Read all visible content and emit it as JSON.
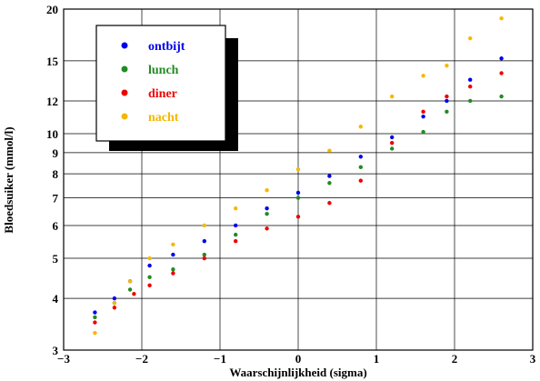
{
  "chart_data": {
    "type": "scatter",
    "title": "",
    "xlabel": "Waarschijnlijkheid (sigma)",
    "ylabel": "Bloedsuiker (mmol/l)",
    "xlim": [
      -3.0,
      3.0
    ],
    "ylim": [
      3.0,
      20.0
    ],
    "y_scale": "log",
    "grid": true,
    "legend_position": "top-left",
    "xticks": [
      -3,
      -2,
      -1,
      0,
      1,
      2,
      3
    ],
    "xtick_labels": [
      "−3",
      "−2",
      "−1",
      "0",
      "1",
      "2",
      "3"
    ],
    "yticks": [
      3,
      4,
      5,
      6,
      7,
      8,
      9,
      10,
      12,
      15,
      20
    ],
    "ytick_labels": [
      "3",
      "4",
      "5",
      "6",
      "7",
      "8",
      "9",
      "10",
      "12",
      "15",
      "20"
    ],
    "series": [
      {
        "name": "ontbijt",
        "color": "#0000ee",
        "points": [
          [
            -2.6,
            3.7
          ],
          [
            -2.35,
            4.0
          ],
          [
            -2.15,
            4.4
          ],
          [
            -1.9,
            4.8
          ],
          [
            -1.6,
            5.1
          ],
          [
            -1.2,
            5.5
          ],
          [
            -0.8,
            6.0
          ],
          [
            -0.4,
            6.6
          ],
          [
            0.0,
            7.2
          ],
          [
            0.4,
            7.9
          ],
          [
            0.8,
            8.8
          ],
          [
            1.2,
            9.8
          ],
          [
            1.6,
            11.0
          ],
          [
            1.9,
            12.0
          ],
          [
            2.2,
            13.5
          ],
          [
            2.6,
            15.2
          ]
        ]
      },
      {
        "name": "lunch",
        "color": "#228b22",
        "points": [
          [
            -2.6,
            3.6
          ],
          [
            -2.35,
            3.9
          ],
          [
            -2.15,
            4.2
          ],
          [
            -1.9,
            4.5
          ],
          [
            -1.6,
            4.7
          ],
          [
            -1.2,
            5.1
          ],
          [
            -0.8,
            5.7
          ],
          [
            -0.4,
            6.4
          ],
          [
            0.0,
            7.0
          ],
          [
            0.4,
            7.6
          ],
          [
            0.8,
            8.3
          ],
          [
            1.2,
            9.2
          ],
          [
            1.6,
            10.1
          ],
          [
            1.9,
            11.3
          ],
          [
            2.2,
            12.0
          ],
          [
            2.6,
            12.3
          ]
        ]
      },
      {
        "name": "diner",
        "color": "#ee0000",
        "points": [
          [
            -2.6,
            3.5
          ],
          [
            -2.35,
            3.8
          ],
          [
            -2.1,
            4.1
          ],
          [
            -1.9,
            4.3
          ],
          [
            -1.6,
            4.6
          ],
          [
            -1.2,
            5.0
          ],
          [
            -0.8,
            5.5
          ],
          [
            -0.4,
            5.9
          ],
          [
            0.0,
            6.3
          ],
          [
            0.4,
            6.8
          ],
          [
            0.8,
            7.7
          ],
          [
            1.2,
            9.5
          ],
          [
            1.6,
            11.3
          ],
          [
            1.9,
            12.3
          ],
          [
            2.2,
            13.0
          ],
          [
            2.6,
            14.0
          ]
        ]
      },
      {
        "name": "nacht",
        "color": "#f5b800",
        "points": [
          [
            -2.6,
            3.3
          ],
          [
            -2.35,
            3.9
          ],
          [
            -2.15,
            4.4
          ],
          [
            -1.9,
            5.0
          ],
          [
            -1.6,
            5.4
          ],
          [
            -1.2,
            6.0
          ],
          [
            -0.8,
            6.6
          ],
          [
            -0.4,
            7.3
          ],
          [
            0.0,
            8.2
          ],
          [
            0.4,
            9.1
          ],
          [
            0.8,
            10.4
          ],
          [
            1.2,
            12.3
          ],
          [
            1.6,
            13.8
          ],
          [
            1.9,
            14.6
          ],
          [
            2.2,
            17.0
          ],
          [
            2.6,
            19.0
          ]
        ]
      }
    ]
  }
}
